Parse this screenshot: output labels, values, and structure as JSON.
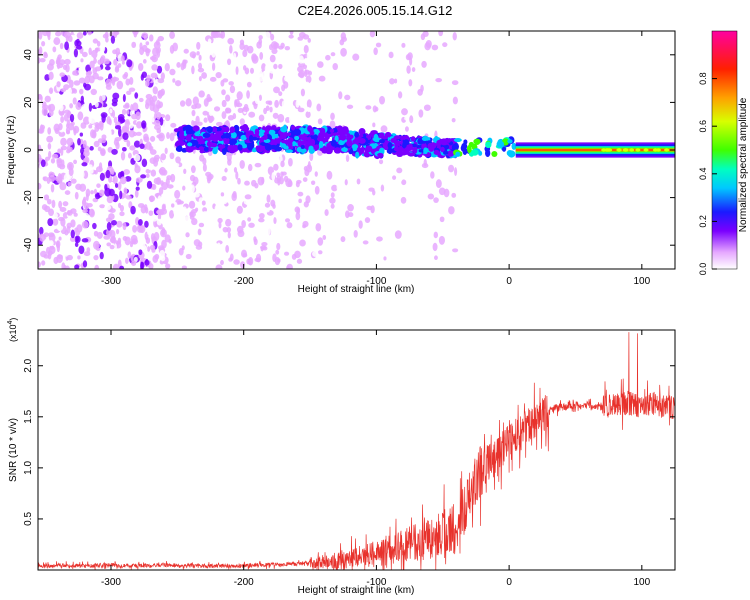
{
  "figure": {
    "title": "C2E4.2026.005.15.14.G12"
  },
  "chart_data": [
    {
      "type": "heatmap",
      "name": "spectrogram",
      "xlabel": "Height of straight line (km)",
      "ylabel": "Frequency (Hz)",
      "xlim": [
        -355,
        125
      ],
      "ylim": [
        -50,
        50
      ],
      "xticks": [
        -300,
        -200,
        -100,
        0,
        100
      ],
      "yticks": [
        -40,
        -20,
        0,
        20,
        40
      ],
      "colorbar": {
        "label": "Normalized spectral amplitude",
        "range": [
          0.0,
          1.0
        ],
        "ticks": [
          0.0,
          0.2,
          0.4,
          0.6,
          0.8
        ],
        "tick_labels": [
          "0.0",
          "0.2",
          "0.4",
          "0.6",
          "0.8"
        ]
      },
      "features": [
        {
          "name": "noise-field",
          "x_range": [
            -355,
            -150
          ],
          "freq_range": [
            -50,
            50
          ],
          "amplitude": 0.15
        },
        {
          "name": "signal-band",
          "x_range": [
            -250,
            -40
          ],
          "freq_center": 3,
          "freq_halfwidth": 5,
          "amplitude": 0.4
        },
        {
          "name": "tone-line",
          "x_range": [
            5,
            125
          ],
          "freq_center": 0,
          "freq_halfwidth": 1.5,
          "amplitude": 0.95
        }
      ]
    },
    {
      "type": "line",
      "name": "snr",
      "xlabel": "Height of straight line (km)",
      "ylabel": "SNR (10 * v/v)",
      "y_scale_label": "(x10",
      "y_scale_exp": "4",
      "y_scale_close": ")",
      "xlim": [
        -355,
        125
      ],
      "ylim": [
        0,
        2.35
      ],
      "xticks": [
        -300,
        -200,
        -100,
        0,
        100
      ],
      "yticks": [
        0.5,
        1.0,
        1.5,
        2.0
      ],
      "ytick_labels": [
        "0.5",
        "1.0",
        "1.5",
        "2.0"
      ],
      "color": "#e8322c",
      "series": [
        {
          "name": "SNR",
          "x": [
            -355,
            -340,
            -320,
            -300,
            -280,
            -260,
            -240,
            -220,
            -200,
            -180,
            -160,
            -140,
            -120,
            -100,
            -90,
            -80,
            -70,
            -60,
            -50,
            -40,
            -35,
            -30,
            -25,
            -20,
            -15,
            -10,
            -5,
            0,
            5,
            10,
            15,
            20,
            25,
            30,
            35,
            40,
            50,
            60,
            70,
            80,
            90,
            100,
            110,
            120,
            125
          ],
          "y": [
            0.03,
            0.05,
            0.04,
            0.05,
            0.04,
            0.05,
            0.04,
            0.04,
            0.04,
            0.05,
            0.06,
            0.08,
            0.11,
            0.16,
            0.2,
            0.23,
            0.27,
            0.31,
            0.36,
            0.45,
            0.55,
            0.7,
            0.88,
            1.0,
            1.06,
            1.1,
            1.18,
            1.25,
            1.3,
            1.36,
            1.42,
            1.48,
            1.53,
            1.56,
            1.58,
            1.6,
            1.61,
            1.61,
            1.6,
            1.62,
            1.63,
            1.61,
            1.63,
            1.59,
            1.6
          ]
        }
      ]
    }
  ]
}
